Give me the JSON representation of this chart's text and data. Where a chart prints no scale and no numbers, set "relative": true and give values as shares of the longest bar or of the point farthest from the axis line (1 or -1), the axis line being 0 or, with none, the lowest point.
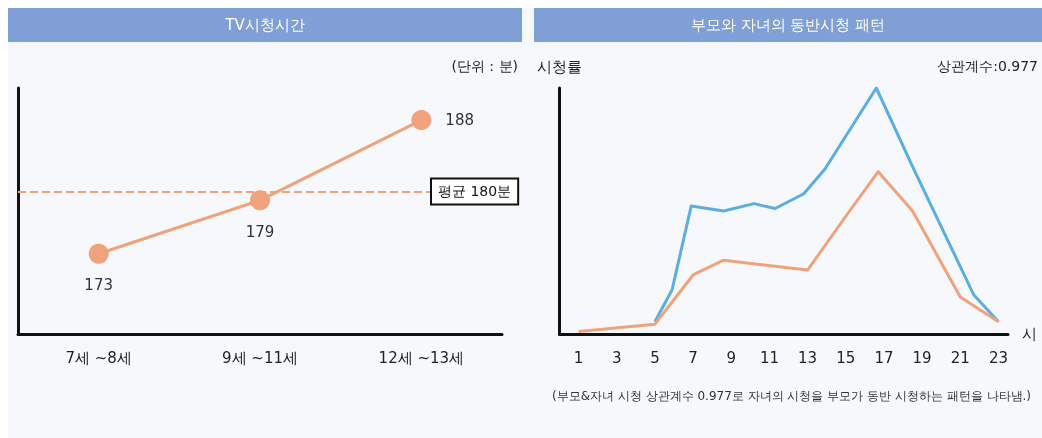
{
  "chart_data": [
    {
      "type": "line",
      "title": "TV시청시간",
      "categories": [
        "7세 ~8세",
        "9세 ~11세",
        "12세 ~13세"
      ],
      "series": [
        {
          "color": "#f0a27c",
          "values": [
            173,
            179,
            188
          ]
        }
      ],
      "data_labels": true,
      "marker": "circle",
      "line_style": "solid",
      "grid": false,
      "tick_labels": "x",
      "ref_lines": [
        {
          "axis": "y",
          "value": 180,
          "label": "평균 180분",
          "color": "#f0a27c",
          "line_style": "dashed"
        }
      ],
      "annotations": [
        "(단위 : 분)"
      ]
    },
    {
      "type": "line",
      "title": "부모와 자녀의 동반시청 패턴",
      "relative": true,
      "xlabel": "시",
      "ylabel": "시청률",
      "xlim": [
        0,
        23.5
      ],
      "xticks": [
        1,
        3,
        5,
        7,
        9,
        11,
        13,
        15,
        17,
        19,
        21,
        23
      ],
      "grid": false,
      "marker": "none",
      "line_style": "solid",
      "tick_labels": "x",
      "series": [
        {
          "color": "#5aaee2",
          "x": [
            5,
            5.9,
            6.9,
            8.6,
            10.2,
            11.3,
            12.8,
            13.9,
            16.6,
            18.5,
            21.7,
            23
          ],
          "values": [
            0.05,
            0.18,
            0.52,
            0.5,
            0.53,
            0.51,
            0.57,
            0.67,
            1,
            0.68,
            0.16,
            0.05
          ]
        },
        {
          "color": "#f0a27c",
          "x": [
            1,
            5,
            7,
            8.6,
            13,
            15.2,
            16.7,
            18.5,
            21,
            23
          ],
          "values": [
            0.01,
            0.04,
            0.24,
            0.3,
            0.26,
            0.5,
            0.66,
            0.5,
            0.15,
            0.05
          ]
        }
      ],
      "annotations": [
        "상관계수:0.977",
        "(부모&자녀 시청 상관계수 0.977로 자녀의 시청을 부모가 동반 시청하는 패턴을 나타냄.)"
      ]
    }
  ]
}
